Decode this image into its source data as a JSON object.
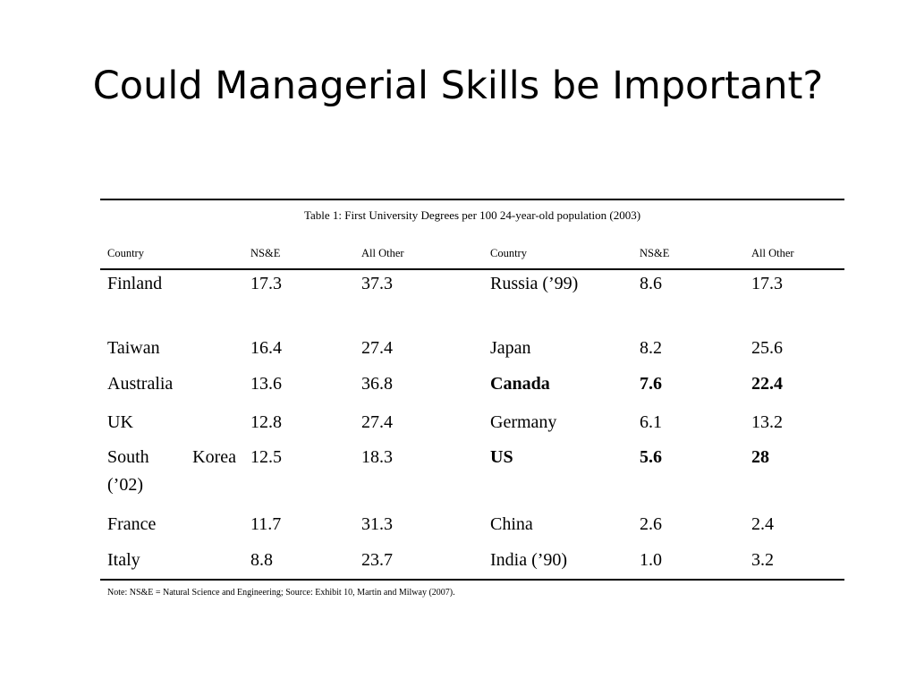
{
  "title": "Could Managerial Skills be Important?",
  "table": {
    "caption": "Table 1: First University Degrees per 100 24-year-old population (2003)",
    "headers": [
      "Country",
      "NS&E",
      "All Other",
      "Country",
      "NS&E",
      "All Other"
    ],
    "rows": [
      {
        "c1": "Finland",
        "n1": "17.3",
        "o1": "37.3",
        "c2": "Russia (’99)",
        "n2": "8.6",
        "o2": "17.3",
        "bold": false
      },
      {
        "c1": "Taiwan",
        "n1": "16.4",
        "o1": "27.4",
        "c2": "Japan",
        "n2": "8.2",
        "o2": "25.6",
        "bold": false
      },
      {
        "c1": "Australia",
        "n1": "13.6",
        "o1": "36.8",
        "c2": "Canada",
        "n2": "7.6",
        "o2": "22.4",
        "bold": true
      },
      {
        "c1": "UK",
        "n1": "12.8",
        "o1": "27.4",
        "c2": "Germany",
        "n2": "6.1",
        "o2": "13.2",
        "bold": false
      },
      {
        "c1": "South Korea (’02)",
        "n1": "12.5",
        "o1": "18.3",
        "c2": "US",
        "n2": "5.6",
        "o2": "28",
        "bold": true
      },
      {
        "c1": "France",
        "n1": "11.7",
        "o1": "31.3",
        "c2": "China",
        "n2": "2.6",
        "o2": "2.4",
        "bold": false
      },
      {
        "c1": "Italy",
        "n1": "8.8",
        "o1": "23.7",
        "c2": "India (’90)",
        "n2": "1.0",
        "o2": "3.2",
        "bold": false
      }
    ],
    "note": "Note: NS&E = Natural Science and Engineering; Source: Exhibit 10, Martin and Milway (2007)."
  }
}
